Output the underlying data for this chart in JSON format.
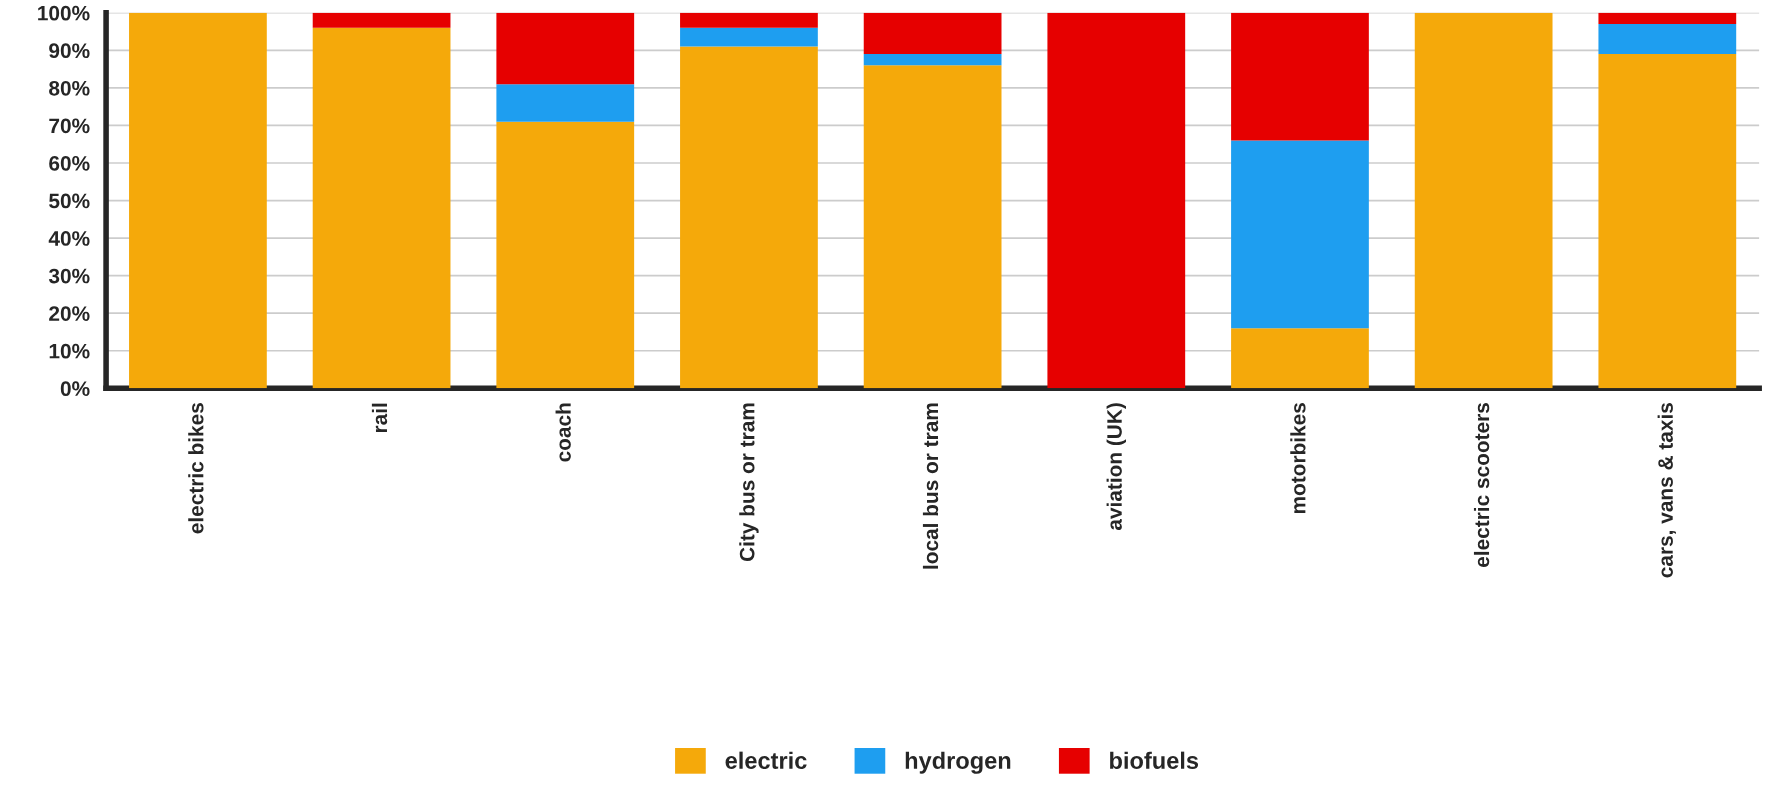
{
  "chart_data": {
    "type": "bar",
    "stacked": true,
    "categories": [
      "electric bikes",
      "rail",
      "coach",
      "City bus or tram",
      "local bus or tram",
      "aviation (UK)",
      "motorbikes",
      "electric scooters",
      "cars, vans & taxis"
    ],
    "series": [
      {
        "name": "electric",
        "color": "#f5a90a",
        "values": [
          100,
          96,
          71,
          91,
          86,
          0,
          16,
          100,
          89
        ]
      },
      {
        "name": "hydrogen",
        "color": "#1e9ef0",
        "values": [
          0,
          0,
          10,
          5,
          3,
          0,
          50,
          0,
          8
        ]
      },
      {
        "name": "biofuels",
        "color": "#e60000",
        "values": [
          0,
          4,
          19,
          4,
          11,
          100,
          34,
          0,
          3
        ]
      }
    ],
    "ylim": [
      0,
      100
    ],
    "yticks": [
      {
        "value": 0,
        "label": "0%"
      },
      {
        "value": 10,
        "label": "10%"
      },
      {
        "value": 20,
        "label": "20%"
      },
      {
        "value": 30,
        "label": "30%"
      },
      {
        "value": 40,
        "label": "40%"
      },
      {
        "value": 50,
        "label": "50%"
      },
      {
        "value": 60,
        "label": "60%"
      },
      {
        "value": 70,
        "label": "70%"
      },
      {
        "value": 80,
        "label": "80%"
      },
      {
        "value": 90,
        "label": "90%"
      },
      {
        "value": 100,
        "label": "100%"
      }
    ],
    "grid": "y",
    "legend": "bottom"
  }
}
